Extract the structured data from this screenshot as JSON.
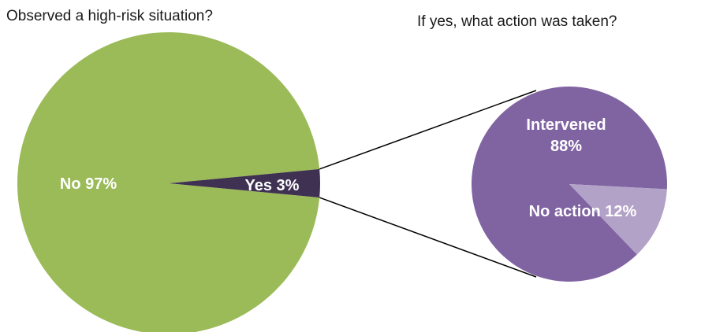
{
  "chart_data": [
    {
      "type": "pie",
      "title": "Observed a high-risk situation?",
      "slices": [
        {
          "label": "No",
          "value": 97,
          "display": "No 97%",
          "color": "#9bbb59"
        },
        {
          "label": "Yes",
          "value": 3,
          "display": "Yes 3%",
          "color": "#3f3151"
        }
      ],
      "legend": "none"
    },
    {
      "type": "pie",
      "title": "If yes, what action was taken?",
      "slices": [
        {
          "label": "Intervened",
          "value": 88,
          "display_lines": [
            "Intervened",
            "88%"
          ],
          "color": "#8064a2"
        },
        {
          "label": "No action",
          "value": 12,
          "display": "No action 12%",
          "color": "#b3a2c7"
        }
      ],
      "legend": "none"
    }
  ]
}
